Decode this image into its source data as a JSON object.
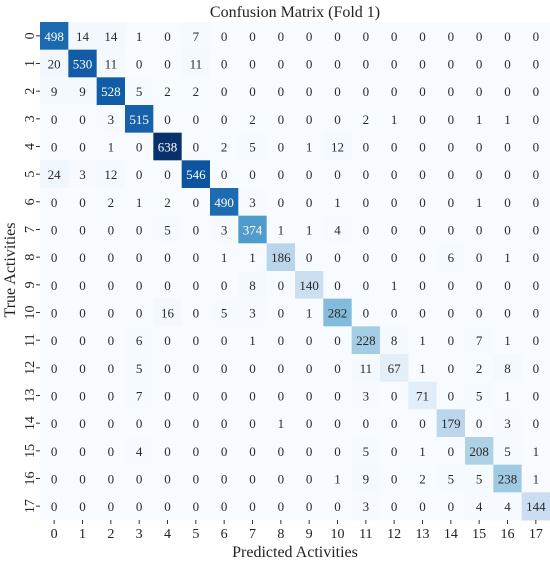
{
  "chart_data": {
    "type": "heatmap",
    "title": "Confusion Matrix (Fold 1)",
    "xlabel": "Predicted Activities",
    "ylabel": "True Activities",
    "x_categories": [
      "0",
      "1",
      "2",
      "3",
      "4",
      "5",
      "6",
      "7",
      "8",
      "9",
      "10",
      "11",
      "12",
      "13",
      "14",
      "15",
      "16",
      "17"
    ],
    "y_categories": [
      "0",
      "1",
      "2",
      "3",
      "4",
      "5",
      "6",
      "7",
      "8",
      "9",
      "10",
      "11",
      "12",
      "13",
      "14",
      "15",
      "16",
      "17"
    ],
    "colormap": "Blues",
    "color_low": "#f7fbff",
    "color_high": "#08306b",
    "value_range": [
      0,
      638
    ],
    "matrix": [
      [
        498,
        14,
        14,
        1,
        0,
        7,
        0,
        0,
        0,
        0,
        0,
        0,
        0,
        0,
        0,
        0,
        0,
        0
      ],
      [
        20,
        530,
        11,
        0,
        0,
        11,
        0,
        0,
        0,
        0,
        0,
        0,
        0,
        0,
        0,
        0,
        0,
        0
      ],
      [
        9,
        9,
        528,
        5,
        2,
        2,
        0,
        0,
        0,
        0,
        0,
        0,
        0,
        0,
        0,
        0,
        0,
        0
      ],
      [
        0,
        0,
        3,
        515,
        0,
        0,
        0,
        2,
        0,
        0,
        0,
        2,
        1,
        0,
        0,
        1,
        1,
        0
      ],
      [
        0,
        0,
        1,
        0,
        638,
        0,
        2,
        5,
        0,
        1,
        12,
        0,
        0,
        0,
        0,
        0,
        0,
        0
      ],
      [
        24,
        3,
        12,
        0,
        0,
        546,
        0,
        0,
        0,
        0,
        0,
        0,
        0,
        0,
        0,
        0,
        0,
        0
      ],
      [
        0,
        0,
        2,
        1,
        2,
        0,
        490,
        3,
        0,
        0,
        1,
        0,
        0,
        0,
        0,
        1,
        0,
        0
      ],
      [
        0,
        0,
        0,
        0,
        5,
        0,
        3,
        374,
        1,
        1,
        4,
        0,
        0,
        0,
        0,
        0,
        0,
        0
      ],
      [
        0,
        0,
        0,
        0,
        0,
        0,
        1,
        1,
        186,
        0,
        0,
        0,
        0,
        0,
        6,
        0,
        1,
        0
      ],
      [
        0,
        0,
        0,
        0,
        0,
        0,
        0,
        8,
        0,
        140,
        0,
        0,
        1,
        0,
        0,
        0,
        0,
        0
      ],
      [
        0,
        0,
        0,
        0,
        16,
        0,
        5,
        3,
        0,
        1,
        282,
        0,
        0,
        0,
        0,
        0,
        0,
        0
      ],
      [
        0,
        0,
        0,
        6,
        0,
        0,
        0,
        1,
        0,
        0,
        0,
        228,
        8,
        1,
        0,
        7,
        1,
        0
      ],
      [
        0,
        0,
        0,
        5,
        0,
        0,
        0,
        0,
        0,
        0,
        0,
        11,
        67,
        1,
        0,
        2,
        8,
        0
      ],
      [
        0,
        0,
        0,
        7,
        0,
        0,
        0,
        0,
        0,
        0,
        0,
        3,
        0,
        71,
        0,
        5,
        1,
        0
      ],
      [
        0,
        0,
        0,
        0,
        0,
        0,
        0,
        0,
        1,
        0,
        0,
        0,
        0,
        0,
        179,
        0,
        3,
        0
      ],
      [
        0,
        0,
        0,
        4,
        0,
        0,
        0,
        0,
        0,
        0,
        0,
        5,
        0,
        1,
        0,
        208,
        5,
        1
      ],
      [
        0,
        0,
        0,
        0,
        0,
        0,
        0,
        0,
        0,
        0,
        1,
        9,
        0,
        2,
        5,
        5,
        238,
        1
      ],
      [
        0,
        0,
        0,
        0,
        0,
        0,
        0,
        0,
        0,
        0,
        0,
        3,
        0,
        0,
        0,
        4,
        4,
        144
      ]
    ]
  }
}
